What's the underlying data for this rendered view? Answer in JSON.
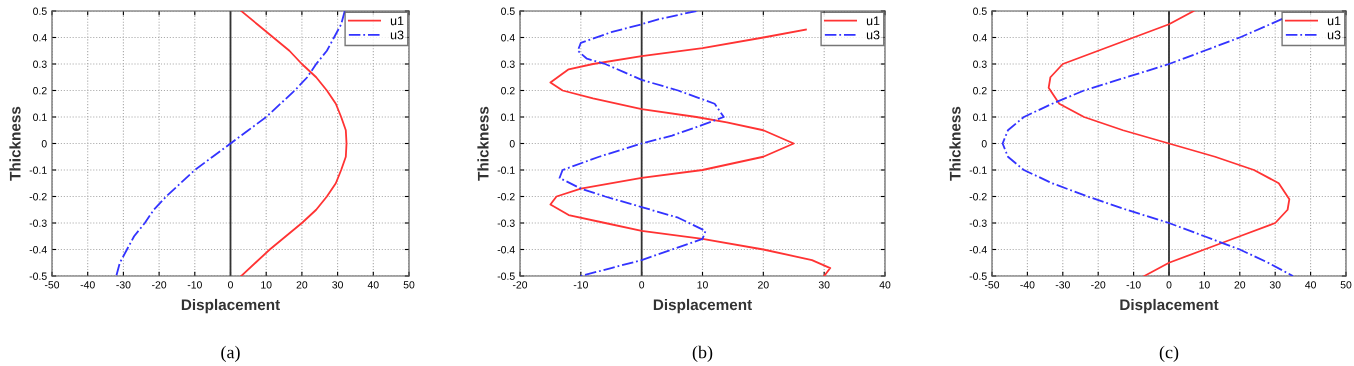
{
  "chart_data": [
    {
      "type": "line",
      "xlabel": "Displacement",
      "ylabel": "Thickness",
      "annotations": [
        "(a)"
      ],
      "xlim": [
        -50,
        50
      ],
      "xticks": [
        -50,
        -40,
        -30,
        -20,
        -10,
        0,
        10,
        20,
        30,
        40,
        50
      ],
      "ylim": [
        -0.5,
        0.5
      ],
      "yticks": [
        -0.5,
        -0.4,
        -0.3,
        -0.2,
        -0.1,
        0,
        0.1,
        0.2,
        0.3,
        0.4,
        0.5
      ],
      "grid": true,
      "legend": "top right",
      "ref_lines": [
        {
          "axis": "x",
          "value": 0,
          "color": "#333333"
        }
      ],
      "series": [
        {
          "name": "u1",
          "color": "#ff3333",
          "line_style": "solid",
          "x": [
            3,
            7.5,
            12,
            16.5,
            20,
            24,
            27,
            29.5,
            31,
            32.3,
            32.5,
            32.3,
            31,
            29.5,
            27,
            24,
            20,
            15.5,
            11,
            7,
            3
          ],
          "values": [
            0.5,
            0.45,
            0.4,
            0.35,
            0.3,
            0.25,
            0.2,
            0.15,
            0.1,
            0.05,
            0,
            -0.05,
            -0.1,
            -0.15,
            -0.2,
            -0.25,
            -0.3,
            -0.35,
            -0.4,
            -0.45,
            -0.5
          ]
        },
        {
          "name": "u3",
          "color": "#3333ff",
          "line_style": "dashdot",
          "x": [
            32,
            31,
            29,
            27,
            24,
            21.5,
            18,
            14,
            10,
            5,
            0,
            -5,
            -10,
            -14,
            -18,
            -21.5,
            -24,
            -27,
            -29,
            -31,
            -32
          ],
          "values": [
            0.5,
            0.45,
            0.4,
            0.35,
            0.3,
            0.25,
            0.2,
            0.15,
            0.1,
            0.05,
            0,
            -0.05,
            -0.1,
            -0.15,
            -0.2,
            -0.25,
            -0.3,
            -0.35,
            -0.4,
            -0.45,
            -0.5
          ]
        }
      ]
    },
    {
      "type": "line",
      "xlabel": "Displacement",
      "ylabel": "Thickness",
      "annotations": [
        "(b)"
      ],
      "xlim": [
        -20,
        40
      ],
      "xticks": [
        -20,
        -10,
        0,
        10,
        20,
        30,
        40
      ],
      "ylim": [
        -0.5,
        0.5
      ],
      "yticks": [
        -0.5,
        -0.4,
        -0.3,
        -0.2,
        -0.1,
        0,
        0.1,
        0.2,
        0.3,
        0.4,
        0.5
      ],
      "grid": true,
      "legend": "top right",
      "ref_lines": [
        {
          "axis": "x",
          "value": 0,
          "color": "#333333"
        }
      ],
      "series": [
        {
          "name": "u1",
          "color": "#ff3333",
          "line_style": "solid",
          "x": [
            27,
            20,
            10,
            0,
            -8,
            -12,
            -15,
            -13,
            -8,
            0,
            9,
            14,
            20,
            25,
            20,
            10,
            0,
            -10,
            -14,
            -15,
            -12,
            -6,
            0,
            10,
            20,
            28,
            31,
            30
          ],
          "values": [
            0.43,
            0.4,
            0.36,
            0.33,
            0.3,
            0.28,
            0.23,
            0.2,
            0.17,
            0.13,
            0.1,
            0.08,
            0.05,
            0,
            -0.05,
            -0.1,
            -0.13,
            -0.17,
            -0.2,
            -0.23,
            -0.27,
            -0.3,
            -0.33,
            -0.36,
            -0.4,
            -0.44,
            -0.47,
            -0.5
          ]
        },
        {
          "name": "u3",
          "color": "#3333ff",
          "line_style": "dashdot",
          "x": [
            9,
            3,
            0,
            -5,
            -10,
            -10.5,
            -9,
            -6,
            -3,
            0,
            6,
            12,
            13.5,
            10,
            5,
            0,
            -7,
            -13,
            -13.5,
            -10,
            -6,
            0,
            6,
            10.5,
            10,
            5,
            0,
            -5,
            -10
          ],
          "values": [
            0.5,
            0.47,
            0.45,
            0.42,
            0.38,
            0.35,
            0.32,
            0.3,
            0.27,
            0.24,
            0.2,
            0.15,
            0.1,
            0.07,
            0.03,
            0,
            -0.05,
            -0.1,
            -0.13,
            -0.17,
            -0.2,
            -0.24,
            -0.28,
            -0.33,
            -0.36,
            -0.4,
            -0.44,
            -0.47,
            -0.5
          ]
        }
      ]
    },
    {
      "type": "line",
      "xlabel": "Displacement",
      "ylabel": "Thickness",
      "annotations": [
        "(c)"
      ],
      "xlim": [
        -50,
        50
      ],
      "xticks": [
        -50,
        -40,
        -30,
        -20,
        -10,
        0,
        10,
        20,
        30,
        40,
        50
      ],
      "ylim": [
        -0.5,
        0.5
      ],
      "yticks": [
        -0.5,
        -0.4,
        -0.3,
        -0.2,
        -0.1,
        0,
        0.1,
        0.2,
        0.3,
        0.4,
        0.5
      ],
      "grid": true,
      "legend": "top right",
      "ref_lines": [
        {
          "axis": "x",
          "value": 0,
          "color": "#333333"
        }
      ],
      "series": [
        {
          "name": "u1",
          "color": "#ff3333",
          "line_style": "solid",
          "x": [
            7,
            0,
            -10,
            -20,
            -30,
            -33.5,
            -34,
            -31,
            -24,
            -13,
            0,
            13,
            24,
            31,
            34,
            33.5,
            30,
            20,
            10,
            0,
            -7
          ],
          "values": [
            0.5,
            0.45,
            0.4,
            0.35,
            0.3,
            0.25,
            0.21,
            0.15,
            0.1,
            0.05,
            0,
            -0.05,
            -0.1,
            -0.15,
            -0.21,
            -0.25,
            -0.3,
            -0.35,
            -0.4,
            -0.45,
            -0.5
          ]
        },
        {
          "name": "u3",
          "color": "#3333ff",
          "line_style": "dashdot",
          "x": [
            32,
            20,
            10,
            0,
            -12,
            -24,
            -33,
            -41,
            -45.5,
            -47,
            -45.5,
            -41,
            -33,
            -23,
            -12,
            0,
            10,
            20,
            28,
            35
          ],
          "values": [
            0.47,
            0.4,
            0.35,
            0.3,
            0.25,
            0.2,
            0.15,
            0.1,
            0.05,
            0,
            -0.05,
            -0.1,
            -0.15,
            -0.2,
            -0.25,
            -0.3,
            -0.35,
            -0.4,
            -0.45,
            -0.5
          ]
        }
      ]
    }
  ]
}
